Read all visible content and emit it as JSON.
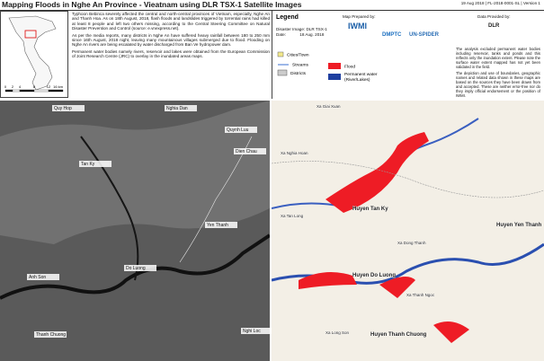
{
  "header": {
    "title": "Mapping Floods in Nghe An Province - Vieatnam using DLR TSX-1 Satellite Images",
    "meta": "19 Aug 2018 | FL-2018-0001-SL | Version 1"
  },
  "scale_labels": [
    "0",
    "2",
    "4",
    "8",
    "12",
    "16 km"
  ],
  "description": [
    "Typhoon Bebinca severely affected the central and north-central provinces of Vietnam, especially, Nghe An and Thanh Hoa. As on 18th August, 2018, flash floods and landslides triggered by torrential rains had killed at least 8 people and left two others missing, according to the Central Steering Committee on Natural Disaster Prevention and Control (source: e.vnexpress.net).",
    "As per the media reports, many districts in Nghe An have suffered heavy rainfall between 180 to 250 mm since 16th August, 2018 night, leaving many mountainous villages submerged due to flood. Flooding on Nghe An rivers are being escalated by water discharged from Ban Ve hydropower dam.",
    "Permanent water bodies namely rivers, reservoir and lakes were obtained from the European Commission of Joint Research Centre (JRC) to overlay in the inundated areas maps."
  ],
  "legend": {
    "title": "Legend",
    "image": "Disaster Image: DLR TSX-1",
    "date": "Date:            18 Aug. 2018",
    "items": [
      "Cities/Town",
      "Streams",
      "Districts",
      "Flood",
      "Permanent water (River/Lakes)"
    ]
  },
  "prepared_by": {
    "title": "Map Prepared by:",
    "logos": [
      "IWMI",
      "DMPTC",
      "UN-SPIDER"
    ]
  },
  "provided_by": {
    "title": "Data Provided by:",
    "logos": [
      "DLR"
    ]
  },
  "disclaimer": [
    "The analysis excluded permanent water bodies including reservoir, tanks and ponds and this reflects only the inundation extent. Please note the surface water extent mapped has not yet been validated in the field.",
    "The depiction and use of boundaries, geographic names and related data shown in these maps are based on the sources they have been drawn from and accepted. These are neither error-free nor do they imply official endorsement or the position of IWMI."
  ],
  "map_left": {
    "places": [
      "Quy Hop",
      "Nghia Dan",
      "Quynh Luu",
      "Dien Chau",
      "Tan Ky",
      "Yen Thanh",
      "Anh Son",
      "Do Luong",
      "Thanh Chuong",
      "Nghi Loc"
    ]
  },
  "map_right": {
    "places": [
      "Xa Giai Xuan",
      "Xa Nghia Hoan",
      "Huyen Tan Ky",
      "Xa Tan Long",
      "Huyen Yen Thanh",
      "Xa Dong Thanh",
      "Huyen Do Luong",
      "Huyen Thanh Chuong",
      "Xa Thanh Ngoc",
      "Xa Long Son"
    ]
  }
}
